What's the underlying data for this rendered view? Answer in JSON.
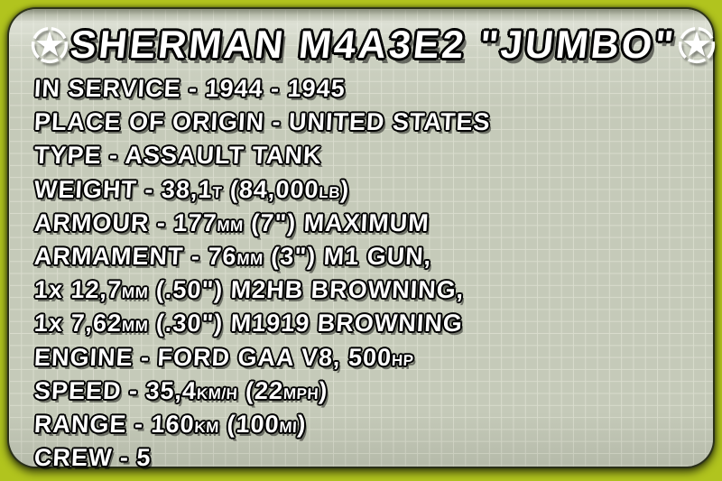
{
  "card": {
    "title": "SHERMAN M4A3E2 \"JUMBO\"",
    "icons": {
      "left": "us-army-star-in-circle",
      "right": "us-army-star-in-circle"
    },
    "colors": {
      "border_lime": "#b1c41e",
      "card_bg": "#c5cab9",
      "grid_line": "#d9dccd",
      "text_fill": "#ffffff",
      "text_outline": "#000000"
    },
    "specs": [
      {
        "segments": [
          {
            "t": "IN SERVICE - 1944 - 1945"
          }
        ]
      },
      {
        "segments": [
          {
            "t": "PLACE OF ORIGIN - UNITED STATES"
          }
        ]
      },
      {
        "segments": [
          {
            "t": "TYPE - ASSAULT TANK"
          }
        ]
      },
      {
        "segments": [
          {
            "t": "WEIGHT - 38,1"
          },
          {
            "t": "t",
            "small": true
          },
          {
            "t": " (84,000"
          },
          {
            "t": "lb",
            "small": true
          },
          {
            "t": ")"
          }
        ]
      },
      {
        "segments": [
          {
            "t": "ARMOUR - 177"
          },
          {
            "t": "mm",
            "small": true
          },
          {
            "t": " (7\") MAXIMUM"
          }
        ]
      },
      {
        "segments": [
          {
            "t": "ARMAMENT - 76"
          },
          {
            "t": "mm",
            "small": true
          },
          {
            "t": " (3\") M1 GUN,"
          }
        ]
      },
      {
        "segments": [
          {
            "t": "1x 12,7"
          },
          {
            "t": "mm",
            "small": true
          },
          {
            "t": " (.50\") M2HB BROWNING,"
          }
        ]
      },
      {
        "segments": [
          {
            "t": "1x 7,62"
          },
          {
            "t": "mm",
            "small": true
          },
          {
            "t": " (.30\") M1919 BROWNING"
          }
        ]
      },
      {
        "segments": [
          {
            "t": "ENGINE - FORD GAA V8, 500"
          },
          {
            "t": "hp",
            "small": true
          }
        ]
      },
      {
        "segments": [
          {
            "t": "SPEED - 35,4"
          },
          {
            "t": "km/h",
            "small": true
          },
          {
            "t": " (22"
          },
          {
            "t": "mph",
            "small": true
          },
          {
            "t": ")"
          }
        ]
      },
      {
        "segments": [
          {
            "t": "RANGE - 160"
          },
          {
            "t": "km",
            "small": true
          },
          {
            "t": " (100"
          },
          {
            "t": "mi",
            "small": true
          },
          {
            "t": ")"
          }
        ]
      },
      {
        "segments": [
          {
            "t": "CREW - 5"
          }
        ]
      }
    ]
  }
}
